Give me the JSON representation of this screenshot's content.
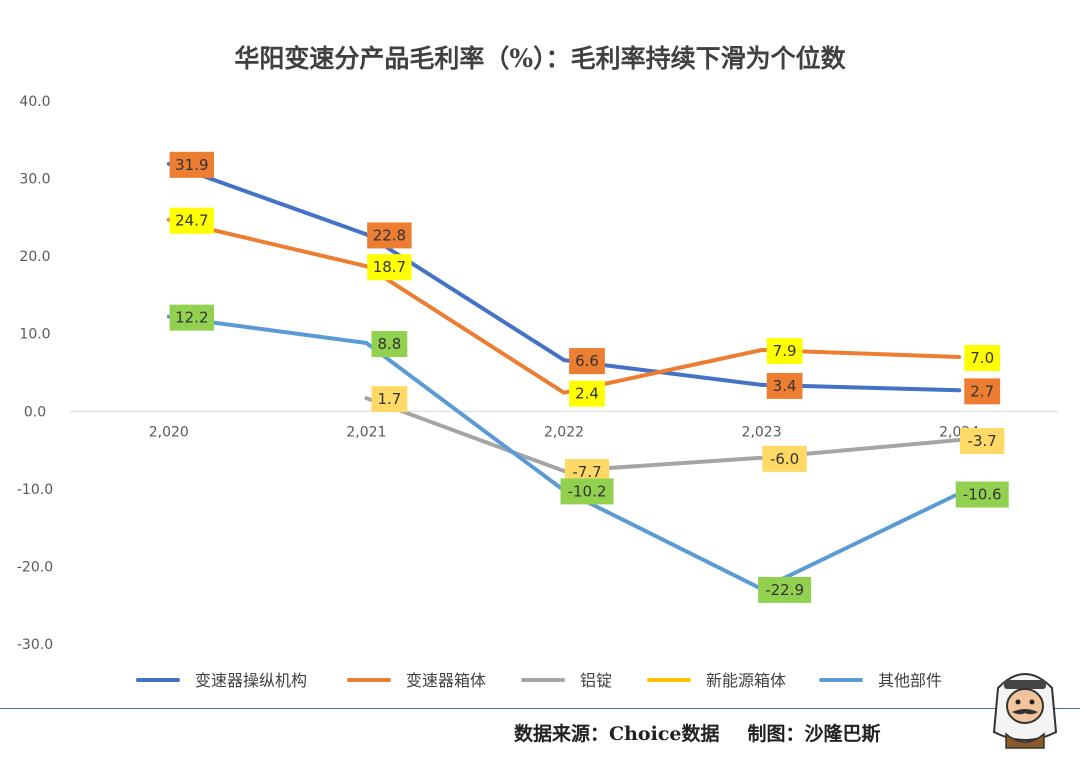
{
  "footer": {
    "source": "数据来源：Choice数据",
    "credit": "制图：沙隆巴斯"
  },
  "chart_data": {
    "type": "line",
    "title": "华阳变速分产品毛利率（%）：毛利率持续下滑为个位数",
    "categories": [
      "2,020",
      "2,021",
      "2,022",
      "2,023",
      "2,024"
    ],
    "ylim": [
      -30,
      40
    ],
    "yticks": [
      "40.0",
      "30.0",
      "20.0",
      "10.0",
      "0.0",
      "-10.0",
      "-20.0",
      "-30.0"
    ],
    "grid": false,
    "legend_position": "bottom",
    "series": [
      {
        "name": "变速器操纵机构",
        "color": "#4472c4",
        "label_bg": "#ed7d31",
        "values": [
          31.9,
          22.8,
          6.6,
          3.4,
          2.7
        ],
        "labels": [
          "31.9",
          "22.8",
          "6.6",
          "3.4",
          "2.7"
        ]
      },
      {
        "name": "变速器箱体",
        "color": "#ed7d31",
        "label_bg": "#ffff00",
        "values": [
          24.7,
          18.7,
          2.4,
          7.9,
          7.0
        ],
        "labels": [
          "24.7",
          "18.7",
          "2.4",
          "7.9",
          "7.0"
        ]
      },
      {
        "name": "铝锭",
        "color": "#a5a5a5",
        "label_bg": "#ffd966",
        "values": [
          null,
          1.7,
          -7.7,
          -6.0,
          -3.7
        ],
        "labels": [
          null,
          "1.7",
          "-7.7",
          "-6.0",
          "-3.7"
        ]
      },
      {
        "name": "新能源箱体",
        "color": "#ffc000",
        "label_bg": "#ffd966",
        "values": [
          null,
          null,
          null,
          null,
          null
        ],
        "labels": [
          null,
          null,
          null,
          null,
          null
        ]
      },
      {
        "name": "其他部件",
        "color": "#5b9bd5",
        "label_bg": "#92d050",
        "values": [
          12.2,
          8.8,
          -10.2,
          -22.9,
          -10.6
        ],
        "labels": [
          "12.2",
          "8.8",
          "-10.2",
          "-22.9",
          "-10.6"
        ]
      }
    ]
  }
}
